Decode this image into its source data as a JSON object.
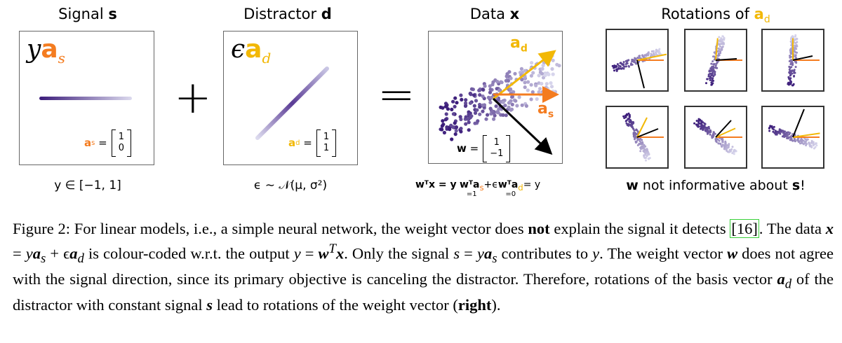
{
  "panels": {
    "signal": {
      "title_plain": "Signal ",
      "title_bold": "s",
      "symbol_y": "y",
      "symbol_a": "a",
      "symbol_sub": "s",
      "vector_label": "a",
      "vector_sub": "s",
      "vector": [
        "1",
        "0"
      ],
      "range": "y ∈ [−1, 1]"
    },
    "distractor": {
      "title_plain": "Distractor ",
      "title_bold": "d",
      "symbol_eps": "ϵ",
      "symbol_a": "a",
      "symbol_sub": "d",
      "vector_label": "a",
      "vector_sub": "d",
      "vector": [
        "1",
        "1"
      ],
      "distribution": "ϵ ∼ 𝒩(μ, σ²)"
    },
    "data": {
      "title_plain": "Data ",
      "title_bold": "x",
      "arrow_ad": "a",
      "arrow_ad_sub": "d",
      "arrow_as": "a",
      "arrow_as_sub": "s",
      "w_label": "w",
      "w_vector": [
        "1",
        "−1"
      ],
      "eq_wtx": "wᵀx = y",
      "eq_term1": "wᵀa",
      "eq_term1_sub": "s",
      "eq_plus": "+ϵ",
      "eq_term2": "wᵀa",
      "eq_term2_sub": "d",
      "eq_end": "= y",
      "under1": "=1",
      "under2": "=0"
    },
    "rotations": {
      "title_plain": "Rotations of ",
      "title_a": "a",
      "title_sub": "d",
      "note_bold": "w",
      "note_mid": " not informative about ",
      "note_bold2": "s",
      "note_end": "!"
    }
  },
  "operators": {
    "plus": "+",
    "equals": "="
  },
  "colors": {
    "signal_orange": "#f47c20",
    "distractor_gold": "#f2b806",
    "data_purple_dark": "#3b1c7a",
    "data_purple_light": "#c9c6e4",
    "ref_box_green": "#3ad13a"
  },
  "caption": {
    "s1": "Figure 2: For linear models, i.e., a simple neural network, the weight vector does ",
    "s1_bold": "not",
    "s1b": " explain the signal it detects ",
    "ref": "[16]",
    "s2": ". The data ",
    "s2_m1": "x",
    "s2_eq": " = ",
    "s2_m2": "y",
    "s2_m3": "a",
    "s2_sub_s": "s",
    "s2_plus": " + ϵ",
    "s2_m4": "a",
    "s2_sub_d": "d",
    "s3": " is colour-coded w.r.t. the output ",
    "s3_y": "y",
    "s3_eq": " = ",
    "s3_w": "w",
    "s3_T": "T",
    "s3_x": "x",
    "s4": ". Only the signal ",
    "s4_s": "s",
    "s4_eq": " = ",
    "s4_y": "y",
    "s4_a": "a",
    "s4_sub": "s",
    "s5": " contributes to ",
    "s5_y": "y",
    "s6": ". The weight vector ",
    "s6_w": "w",
    "s7": " does not agree with the signal direction, since its primary objective is canceling the distractor. Therefore, rotations of the basis vector ",
    "s7_a": "a",
    "s7_sub": "d",
    "s8": " of the distractor with constant signal ",
    "s8_s": "s",
    "s9": " lead to rotations of the weight vector (",
    "s9_bold": "right",
    "s10": ")."
  }
}
